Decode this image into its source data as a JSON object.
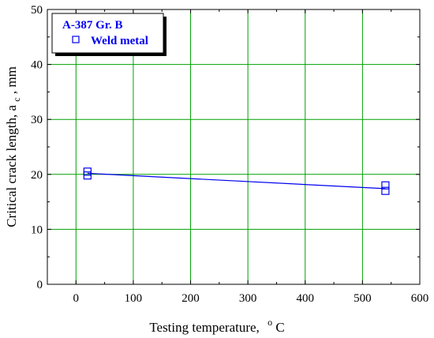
{
  "chart_data": {
    "type": "scatter",
    "title": "",
    "xlabel": "Testing temperature,",
    "xlabel_unit_sup": "o",
    "xlabel_unit": "C",
    "ylabel": "Critical crack length, a",
    "ylabel_sub": "c",
    "ylabel_unit": ", mm",
    "xlim": [
      -50,
      600
    ],
    "ylim": [
      0,
      50
    ],
    "xticks": [
      0,
      100,
      200,
      300,
      400,
      500,
      600
    ],
    "yticks": [
      0,
      10,
      20,
      30,
      40,
      50
    ],
    "grid": true,
    "legend_position": "top-left",
    "legend_title": "A-387 Gr. B",
    "series": [
      {
        "name": "Weld metal",
        "marker": "square-open",
        "color": "#0000ee",
        "points": [
          {
            "x": 20,
            "y": 20.5
          },
          {
            "x": 20,
            "y": 19.8
          },
          {
            "x": 540,
            "y": 18.0
          },
          {
            "x": 540,
            "y": 17.0
          }
        ]
      }
    ],
    "fit_line": {
      "color": "#0000ee",
      "x": [
        20,
        540
      ],
      "y": [
        20.2,
        17.4
      ]
    },
    "colors": {
      "grid": "#00a000",
      "axis": "#000000"
    }
  }
}
